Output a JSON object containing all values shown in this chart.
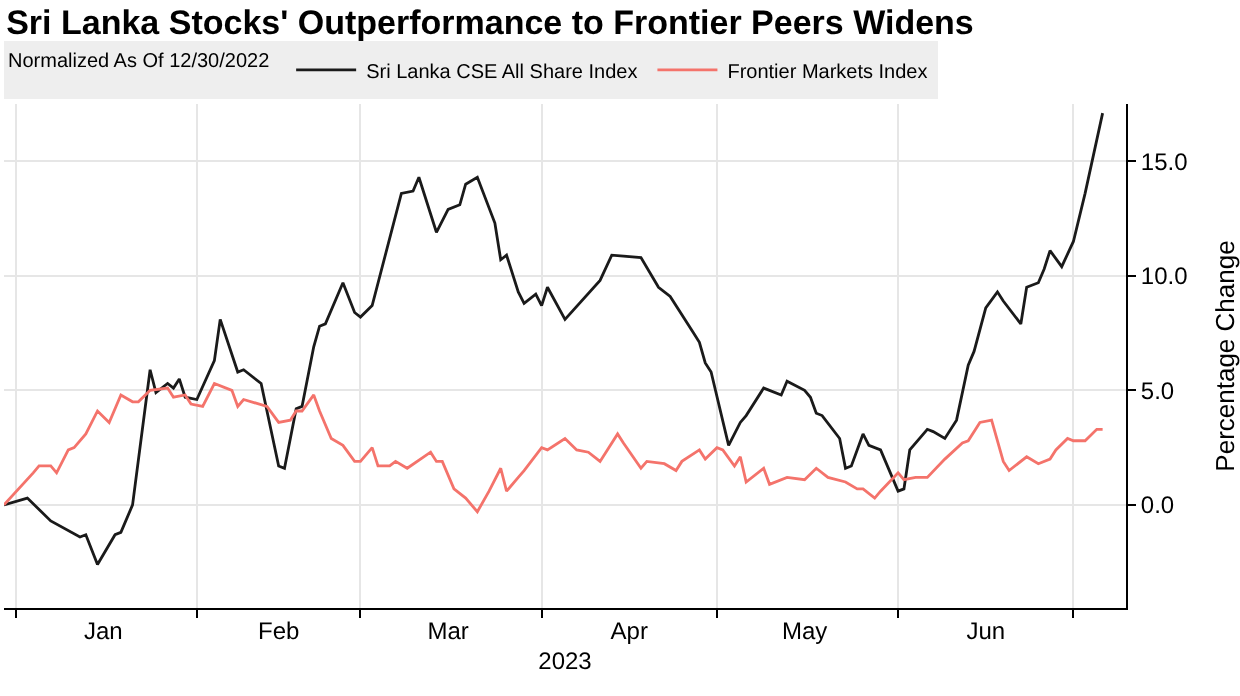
{
  "chart_data": {
    "type": "line",
    "title": "Sri Lanka Stocks' Outperformance to Frontier Peers Widens",
    "legend_title": "Normalized As Of 12/30/2022",
    "xlabel": "2023",
    "ylabel": "Percentage Change",
    "xlim": [
      "2022-12-30",
      "2023-07-10"
    ],
    "ylim": [
      -4.5,
      17.5
    ],
    "xticks": [
      {
        "value": "2023-01-01",
        "label": null
      },
      {
        "value": "2023-01-16",
        "label": "Jan"
      },
      {
        "value": "2023-02-01",
        "label": null
      },
      {
        "value": "2023-02-15",
        "label": "Feb"
      },
      {
        "value": "2023-03-01",
        "label": null
      },
      {
        "value": "2023-03-16",
        "label": "Mar"
      },
      {
        "value": "2023-04-01",
        "label": null
      },
      {
        "value": "2023-04-16",
        "label": "Apr"
      },
      {
        "value": "2023-05-01",
        "label": null
      },
      {
        "value": "2023-05-16",
        "label": "May"
      },
      {
        "value": "2023-06-01",
        "label": null
      },
      {
        "value": "2023-06-16",
        "label": "Jun"
      },
      {
        "value": "2023-07-01",
        "label": null
      }
    ],
    "yticks": [
      {
        "value": 0,
        "label": "0.0"
      },
      {
        "value": 5,
        "label": "5.0"
      },
      {
        "value": 10,
        "label": "10.0"
      },
      {
        "value": 15,
        "label": "15.0"
      }
    ],
    "grid": true,
    "legend": "top left",
    "marker": "none",
    "line_style": "solid",
    "series": [
      {
        "name": "Sri Lanka CSE All Share Index",
        "color": "#1a1a1a",
        "x": [
          "2022-12-30",
          "2023-01-03",
          "2023-01-07",
          "2023-01-12",
          "2023-01-13",
          "2023-01-15",
          "2023-01-18",
          "2023-01-19",
          "2023-01-21",
          "2023-01-24",
          "2023-01-25",
          "2023-01-27",
          "2023-01-28",
          "2023-01-29",
          "2023-01-30",
          "2023-02-01",
          "2023-02-04",
          "2023-02-05",
          "2023-02-08",
          "2023-02-09",
          "2023-02-12",
          "2023-02-15",
          "2023-02-16",
          "2023-02-18",
          "2023-02-19",
          "2023-02-21",
          "2023-02-22",
          "2023-02-23",
          "2023-02-26",
          "2023-02-28",
          "2023-03-01",
          "2023-03-03",
          "2023-03-08",
          "2023-03-10",
          "2023-03-11",
          "2023-03-14",
          "2023-03-16",
          "2023-03-18",
          "2023-03-19",
          "2023-03-21",
          "2023-03-24",
          "2023-03-25",
          "2023-03-26",
          "2023-03-28",
          "2023-03-29",
          "2023-03-31",
          "2023-04-01",
          "2023-04-02",
          "2023-04-05",
          "2023-04-11",
          "2023-04-13",
          "2023-04-18",
          "2023-04-21",
          "2023-04-23",
          "2023-04-27",
          "2023-04-28",
          "2023-04-29",
          "2023-04-30",
          "2023-05-03",
          "2023-05-05",
          "2023-05-06",
          "2023-05-09",
          "2023-05-12",
          "2023-05-13",
          "2023-05-16",
          "2023-05-17",
          "2023-05-18",
          "2023-05-19",
          "2023-05-22",
          "2023-05-23",
          "2023-05-24",
          "2023-05-26",
          "2023-05-27",
          "2023-05-29",
          "2023-06-01",
          "2023-06-02",
          "2023-06-03",
          "2023-06-06",
          "2023-06-07",
          "2023-06-09",
          "2023-06-11",
          "2023-06-13",
          "2023-06-14",
          "2023-06-16",
          "2023-06-18",
          "2023-06-19",
          "2023-06-22",
          "2023-06-23",
          "2023-06-25",
          "2023-06-26",
          "2023-06-27",
          "2023-06-29",
          "2023-07-01",
          "2023-07-03",
          "2023-07-06"
        ],
        "values": [
          0.0,
          0.3,
          -0.7,
          -1.4,
          -1.3,
          -2.6,
          -1.3,
          -1.2,
          0.0,
          5.9,
          4.9,
          5.3,
          5.1,
          5.5,
          4.7,
          4.6,
          6.3,
          8.1,
          5.8,
          5.9,
          5.3,
          1.7,
          1.6,
          4.2,
          4.3,
          6.9,
          7.8,
          7.9,
          9.7,
          8.4,
          8.2,
          8.7,
          13.6,
          13.7,
          14.3,
          11.9,
          12.9,
          13.1,
          14.0,
          14.3,
          12.3,
          10.7,
          10.9,
          9.3,
          8.8,
          9.2,
          8.7,
          9.5,
          8.1,
          9.8,
          10.9,
          10.8,
          9.5,
          9.1,
          7.5,
          7.1,
          6.2,
          5.8,
          2.6,
          3.6,
          3.9,
          5.1,
          4.8,
          5.4,
          5.0,
          4.7,
          4.0,
          3.9,
          2.9,
          1.6,
          1.7,
          3.1,
          2.6,
          2.4,
          0.6,
          0.7,
          2.4,
          3.3,
          3.2,
          2.9,
          3.7,
          6.1,
          6.7,
          8.6,
          9.3,
          8.9,
          7.9,
          9.5,
          9.7,
          10.3,
          11.1,
          10.4,
          11.5,
          13.6,
          17.1
        ]
      },
      {
        "name": "Frontier Markets Index",
        "color": "#f4736b",
        "x": [
          "2022-12-30",
          "2023-01-04",
          "2023-01-05",
          "2023-01-07",
          "2023-01-08",
          "2023-01-10",
          "2023-01-11",
          "2023-01-13",
          "2023-01-15",
          "2023-01-17",
          "2023-01-19",
          "2023-01-21",
          "2023-01-22",
          "2023-01-24",
          "2023-01-27",
          "2023-01-28",
          "2023-01-30",
          "2023-01-31",
          "2023-02-02",
          "2023-02-04",
          "2023-02-07",
          "2023-02-08",
          "2023-02-09",
          "2023-02-13",
          "2023-02-15",
          "2023-02-17",
          "2023-02-18",
          "2023-02-19",
          "2023-02-21",
          "2023-02-22",
          "2023-02-24",
          "2023-02-26",
          "2023-02-28",
          "2023-03-01",
          "2023-03-03",
          "2023-03-04",
          "2023-03-06",
          "2023-03-07",
          "2023-03-09",
          "2023-03-13",
          "2023-03-14",
          "2023-03-15",
          "2023-03-17",
          "2023-03-19",
          "2023-03-21",
          "2023-03-23",
          "2023-03-25",
          "2023-03-26",
          "2023-03-28",
          "2023-03-29",
          "2023-04-01",
          "2023-04-02",
          "2023-04-05",
          "2023-04-07",
          "2023-04-09",
          "2023-04-11",
          "2023-04-14",
          "2023-04-15",
          "2023-04-18",
          "2023-04-19",
          "2023-04-22",
          "2023-04-24",
          "2023-04-25",
          "2023-04-28",
          "2023-04-29",
          "2023-05-01",
          "2023-05-02",
          "2023-05-04",
          "2023-05-05",
          "2023-05-06",
          "2023-05-09",
          "2023-05-10",
          "2023-05-13",
          "2023-05-16",
          "2023-05-18",
          "2023-05-20",
          "2023-05-23",
          "2023-05-25",
          "2023-05-26",
          "2023-05-28",
          "2023-05-29",
          "2023-06-01",
          "2023-06-02",
          "2023-06-04",
          "2023-06-06",
          "2023-06-09",
          "2023-06-12",
          "2023-06-13",
          "2023-06-15",
          "2023-06-17",
          "2023-06-19",
          "2023-06-20",
          "2023-06-23",
          "2023-06-25",
          "2023-06-27",
          "2023-06-28",
          "2023-06-30",
          "2023-07-01",
          "2023-07-03",
          "2023-07-05",
          "2023-07-06"
        ],
        "values": [
          0.0,
          1.4,
          1.7,
          1.7,
          1.4,
          2.4,
          2.5,
          3.1,
          4.1,
          3.6,
          4.8,
          4.5,
          4.5,
          5.0,
          5.1,
          4.7,
          4.8,
          4.4,
          4.3,
          5.3,
          5.0,
          4.3,
          4.6,
          4.3,
          3.6,
          3.7,
          4.1,
          4.1,
          4.8,
          4.1,
          2.9,
          2.6,
          1.9,
          1.9,
          2.5,
          1.7,
          1.7,
          1.9,
          1.6,
          2.3,
          1.9,
          1.9,
          0.7,
          0.3,
          -0.3,
          0.6,
          1.6,
          0.6,
          1.2,
          1.5,
          2.5,
          2.4,
          2.9,
          2.4,
          2.3,
          1.9,
          3.1,
          2.7,
          1.6,
          1.9,
          1.8,
          1.5,
          1.9,
          2.4,
          2.0,
          2.5,
          2.4,
          1.7,
          2.1,
          1.0,
          1.6,
          0.9,
          1.2,
          1.1,
          1.6,
          1.2,
          1.0,
          0.7,
          0.7,
          0.3,
          0.6,
          1.4,
          1.1,
          1.2,
          1.2,
          2.0,
          2.7,
          2.8,
          3.6,
          3.7,
          1.9,
          1.5,
          2.1,
          1.8,
          2.0,
          2.4,
          2.9,
          2.8,
          2.8,
          3.3,
          3.3
        ]
      }
    ]
  }
}
